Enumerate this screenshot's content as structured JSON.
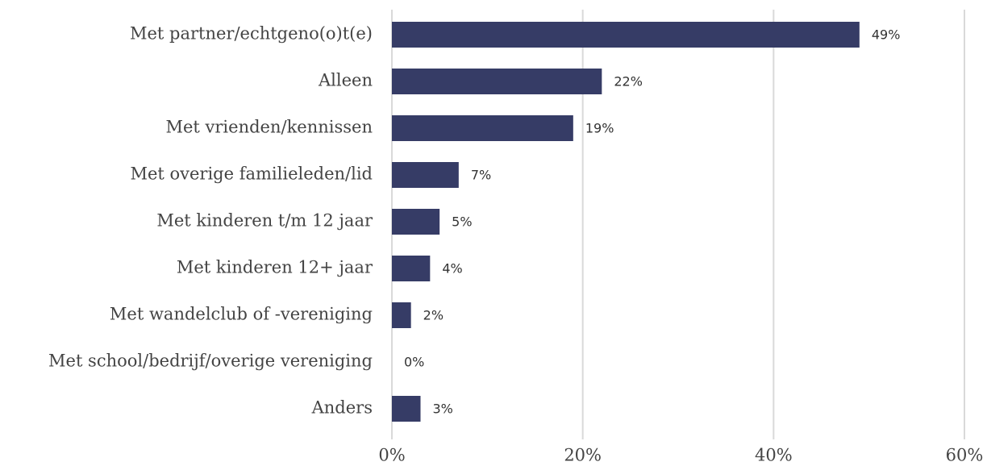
{
  "chart_data": {
    "type": "hbar",
    "categories": [
      "Met partner/echtgeno(o)t(e)",
      "Alleen",
      "Met vrienden/kennissen",
      "Met overige familieleden/lid",
      "Met kinderen t/m 12 jaar",
      "Met kinderen 12+ jaar",
      "Met wandelclub of -vereniging",
      "Met school/bedrijf/overige vereniging",
      "Anders"
    ],
    "values": [
      49,
      22,
      19,
      7,
      5,
      4,
      2,
      0,
      3
    ],
    "value_labels": [
      "49%",
      "22%",
      "19%",
      "7%",
      "5%",
      "4%",
      "2%",
      "0%",
      "3%"
    ],
    "color": "#363c66",
    "xlim": [
      0,
      60
    ],
    "xticks": [
      {
        "value": 0,
        "label": "0%"
      },
      {
        "value": 20,
        "label": "20%"
      },
      {
        "value": 40,
        "label": "40%"
      },
      {
        "value": 60,
        "label": "60%"
      }
    ],
    "grid": true
  }
}
